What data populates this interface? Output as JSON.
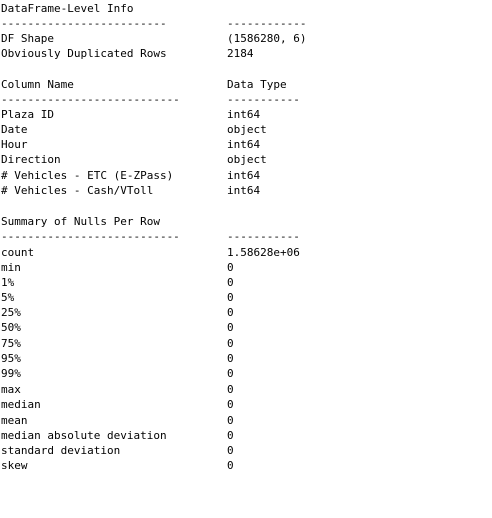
{
  "dataframe_level": {
    "title": "DataFrame-Level Info",
    "rule_left": "-------------------------",
    "rule_right": "------------",
    "rows": [
      {
        "label": "DF Shape",
        "value": "(1586280, 6)"
      },
      {
        "label": "Obviously Duplicated Rows",
        "value": "2184"
      }
    ]
  },
  "columns": {
    "header_name": "Column Name",
    "header_type": "Data Type",
    "rule_left": "---------------------------",
    "rule_right": "-----------",
    "rows": [
      {
        "name": "Plaza ID",
        "type": "int64"
      },
      {
        "name": "Date",
        "type": "object"
      },
      {
        "name": "Hour",
        "type": "int64"
      },
      {
        "name": "Direction",
        "type": "object"
      },
      {
        "name": "# Vehicles - ETC (E-ZPass)",
        "type": "int64"
      },
      {
        "name": "# Vehicles - Cash/VToll",
        "type": "int64"
      }
    ]
  },
  "nulls_summary": {
    "title": "Summary of Nulls Per Row",
    "rule_left": "---------------------------",
    "rule_right": "-----------",
    "rows": [
      {
        "stat": "count",
        "value": "1.58628e+06"
      },
      {
        "stat": "min",
        "value": "0"
      },
      {
        "stat": "1%",
        "value": "0"
      },
      {
        "stat": "5%",
        "value": "0"
      },
      {
        "stat": "25%",
        "value": "0"
      },
      {
        "stat": "50%",
        "value": "0"
      },
      {
        "stat": "75%",
        "value": "0"
      },
      {
        "stat": "95%",
        "value": "0"
      },
      {
        "stat": "99%",
        "value": "0"
      },
      {
        "stat": "max",
        "value": "0"
      },
      {
        "stat": "median",
        "value": "0"
      },
      {
        "stat": "mean",
        "value": "0"
      },
      {
        "stat": "median absolute deviation",
        "value": "0"
      },
      {
        "stat": "standard deviation",
        "value": "0"
      },
      {
        "stat": "skew",
        "value": "0"
      }
    ]
  }
}
